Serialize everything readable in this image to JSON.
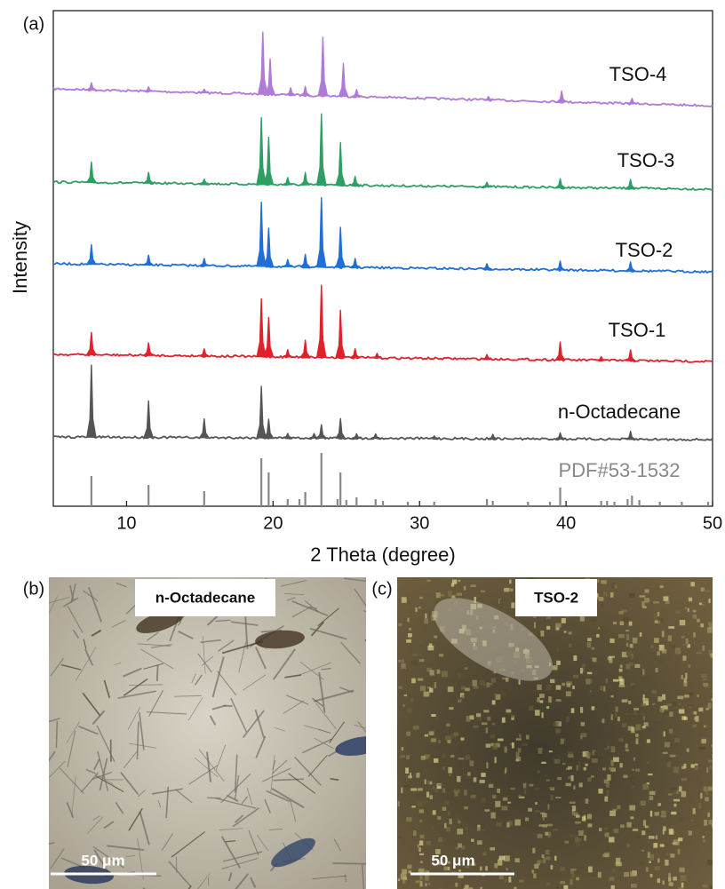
{
  "chart_data": {
    "type": "xrd",
    "panel_label": "(a)",
    "x_label": "2 Theta (degree)",
    "y_label": "Intensity",
    "xlim": [
      5,
      50
    ],
    "xticks": [
      10,
      20,
      30,
      40,
      50
    ],
    "series": [
      {
        "name": "TSO-4",
        "color": "#b07ad8",
        "style": "profile",
        "x": [
          7.6,
          11.5,
          15.3,
          19.3,
          19.8,
          21.2,
          22.2,
          23.4,
          24.8,
          25.7,
          34.7,
          39.7,
          44.5
        ],
        "values": [
          8,
          5,
          4,
          70,
          40,
          8,
          10,
          66,
          37,
          8,
          4,
          12,
          6
        ]
      },
      {
        "name": "TSO-3",
        "color": "#2e9e63",
        "style": "profile",
        "x": [
          7.6,
          11.5,
          15.3,
          19.2,
          19.7,
          21.0,
          22.2,
          23.3,
          24.6,
          25.6,
          34.6,
          39.6,
          44.4
        ],
        "values": [
          23,
          12,
          5,
          75,
          53,
          8,
          14,
          80,
          48,
          10,
          5,
          10,
          10
        ]
      },
      {
        "name": "TSO-2",
        "color": "#1f6fd6",
        "style": "profile",
        "x": [
          7.6,
          11.5,
          15.3,
          19.2,
          19.7,
          21.0,
          22.2,
          23.3,
          24.6,
          25.6,
          34.6,
          39.6,
          44.4
        ],
        "values": [
          22,
          11,
          8,
          72,
          43,
          8,
          14,
          78,
          45,
          10,
          6,
          10,
          10
        ]
      },
      {
        "name": "TSO-1",
        "color": "#e0202a",
        "style": "profile",
        "x": [
          7.6,
          11.5,
          15.3,
          19.2,
          19.7,
          21.0,
          22.2,
          23.3,
          24.6,
          25.6,
          27.1,
          34.6,
          39.6,
          42.4,
          44.4
        ],
        "values": [
          25,
          14,
          8,
          65,
          44,
          8,
          19,
          81,
          53,
          10,
          5,
          5,
          20,
          4,
          12
        ]
      },
      {
        "name": "n-Octadecane",
        "color": "#555555",
        "style": "profile",
        "x": [
          7.6,
          11.5,
          15.3,
          19.2,
          19.7,
          21.0,
          22.8,
          23.3,
          24.6,
          25.7,
          27.0,
          31.0,
          35.0,
          39.6,
          44.4
        ],
        "values": [
          81,
          41,
          21,
          58,
          21,
          5,
          5,
          15,
          22,
          5,
          5,
          3,
          5,
          7,
          9
        ]
      },
      {
        "name": "PDF#53-1532",
        "color": "#888888",
        "style": "stick",
        "x": [
          7.6,
          11.5,
          15.3,
          19.2,
          19.7,
          21.0,
          21.8,
          22.2,
          23.3,
          24.4,
          24.6,
          25.0,
          25.7,
          27.0,
          27.5,
          29.2,
          31.0,
          34.6,
          35.0,
          37.4,
          38.9,
          39.6,
          42.4,
          42.8,
          43.3,
          44.2,
          44.5,
          45.0,
          46.4,
          47.9,
          49.7
        ],
        "values": [
          34,
          24,
          17,
          54,
          38,
          8,
          8,
          16,
          60,
          8,
          38,
          7,
          10,
          8,
          6,
          5,
          5,
          8,
          6,
          5,
          5,
          21,
          6,
          6,
          5,
          8,
          12,
          7,
          5,
          5,
          5
        ]
      }
    ]
  },
  "micrographs": [
    {
      "panel_label": "(b)",
      "title": "n-Octadecane",
      "scale_bar": "50 μm"
    },
    {
      "panel_label": "(c)",
      "title": "TSO-2",
      "scale_bar": "50 μm"
    }
  ]
}
